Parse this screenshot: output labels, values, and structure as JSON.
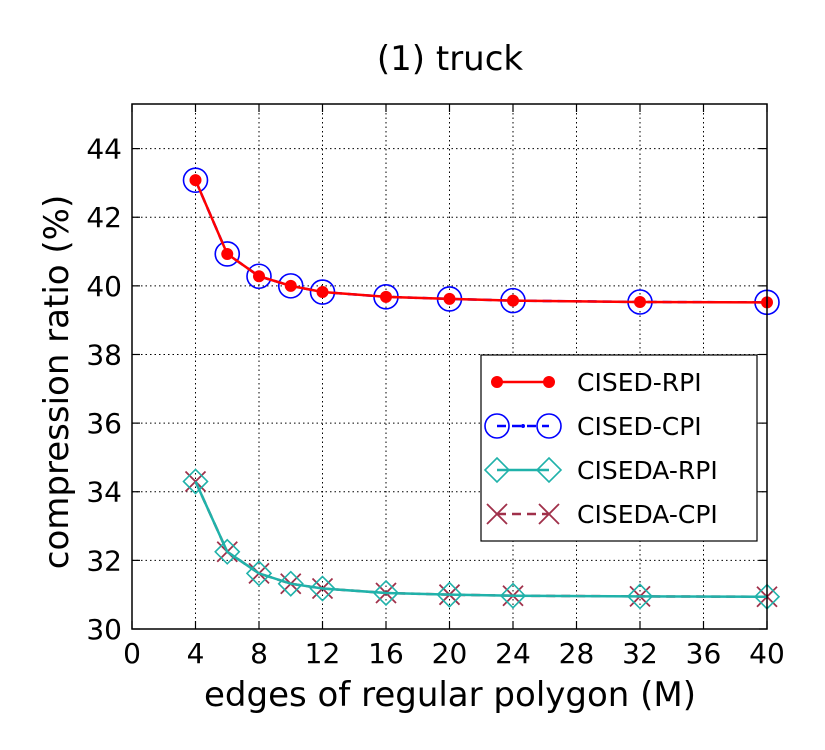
{
  "chart_data": {
    "type": "line",
    "title": "(1) truck",
    "xlabel": "edges of regular polygon (M)",
    "ylabel": "compression ratio (%)",
    "xlim": [
      0,
      40
    ],
    "ylim": [
      30,
      45.3
    ],
    "xticks": [
      0,
      4,
      8,
      12,
      16,
      20,
      24,
      28,
      32,
      36,
      40
    ],
    "yticks": [
      30,
      32,
      34,
      36,
      38,
      40,
      42,
      44
    ],
    "grid": true,
    "legend_position": "center-right",
    "x": [
      4,
      6,
      8,
      10,
      12,
      16,
      20,
      24,
      32,
      40
    ],
    "series": [
      {
        "name": "CISED-RPI",
        "color": "#ff0000",
        "line": "solid",
        "marker": "filled-circle",
        "values": [
          43.08,
          40.93,
          40.28,
          40.0,
          39.82,
          39.68,
          39.62,
          39.57,
          39.53,
          39.52
        ]
      },
      {
        "name": "CISED-CPI",
        "color": "#0000ff",
        "line": "dashed",
        "marker": "open-circle",
        "values": [
          43.08,
          40.93,
          40.28,
          40.0,
          39.82,
          39.68,
          39.62,
          39.57,
          39.53,
          39.52
        ]
      },
      {
        "name": "CISEDA-RPI",
        "color": "#20b2aa",
        "line": "solid",
        "marker": "open-diamond",
        "values": [
          34.3,
          32.25,
          31.62,
          31.32,
          31.18,
          31.05,
          31.0,
          30.97,
          30.95,
          30.94
        ]
      },
      {
        "name": "CISEDA-CPI",
        "color": "#a0304a",
        "line": "dashed",
        "marker": "x",
        "values": [
          34.3,
          32.25,
          31.62,
          31.32,
          31.18,
          31.05,
          31.0,
          30.97,
          30.95,
          30.94
        ]
      }
    ]
  }
}
